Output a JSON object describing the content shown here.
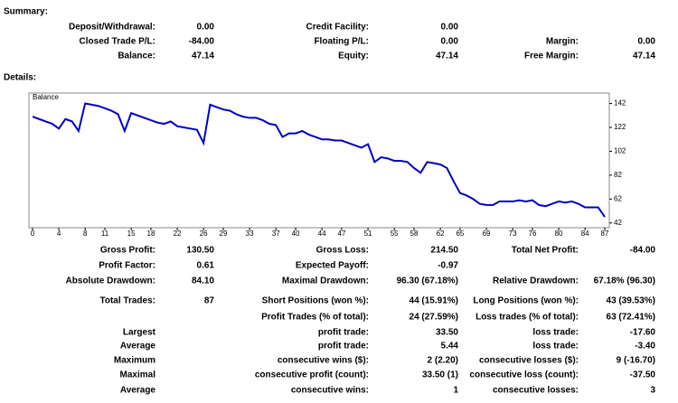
{
  "summary": {
    "title": "Summary:",
    "rows": [
      {
        "c1": {
          "label": "Deposit/Withdrawal:",
          "value": "0.00"
        },
        "c2": {
          "label": "Credit Facility:",
          "value": "0.00"
        }
      },
      {
        "c1": {
          "label": "Closed Trade P/L:",
          "value": "-84.00"
        },
        "c2": {
          "label": "Floating P/L:",
          "value": "0.00"
        },
        "c3": {
          "label": "Margin:",
          "value": "0.00"
        }
      },
      {
        "c1": {
          "label": "Balance:",
          "value": "47.14"
        },
        "c2": {
          "label": "Equity:",
          "value": "47.14"
        },
        "c3": {
          "label": "Free Margin:",
          "value": "47.14"
        }
      }
    ]
  },
  "details": {
    "title": "Details:",
    "rows": [
      {
        "c1": {
          "label": "Gross Profit:",
          "value": "130.50"
        },
        "c2": {
          "label": "Gross Loss:",
          "value": "214.50"
        },
        "c3": {
          "label": "Total Net Profit:",
          "value": "-84.00"
        }
      },
      {
        "c1": {
          "label": "Profit Factor:",
          "value": "0.61"
        },
        "c2": {
          "label": "Expected Payoff:",
          "value": "-0.97"
        }
      },
      {
        "c1": {
          "label": "Absolute Drawdown:",
          "value": "84.10"
        },
        "c2": {
          "label": "Maximal Drawdown:",
          "value": "96.30 (67.18%)"
        },
        "c3": {
          "label": "Relative Drawdown:",
          "value": "67.18% (96.30)"
        }
      },
      {
        "c1": {
          "label": "Total Trades:",
          "value": "87"
        },
        "c2": {
          "label": "Short Positions (won %):",
          "value": "44 (15.91%)"
        },
        "c3": {
          "label": "Long Positions (won %):",
          "value": "43 (39.53%)"
        }
      },
      {
        "c2": {
          "label": "Profit Trades (% of total):",
          "value": "24 (27.59%)"
        },
        "c3": {
          "label": "Loss trades (% of total):",
          "value": "63 (72.41%)"
        }
      },
      {
        "c1": {
          "label": "Largest"
        },
        "c2": {
          "label": "profit trade:",
          "value": "33.50"
        },
        "c3": {
          "label": "loss trade:",
          "value": "-17.60"
        }
      },
      {
        "c1": {
          "label": "Average"
        },
        "c2": {
          "label": "profit trade:",
          "value": "5.44"
        },
        "c3": {
          "label": "loss trade:",
          "value": "-3.40"
        }
      },
      {
        "c1": {
          "label": "Maximum"
        },
        "c2": {
          "label": "consecutive wins ($):",
          "value": "2 (2.20)"
        },
        "c3": {
          "label": "consecutive losses ($):",
          "value": "9 (-16.70)"
        }
      },
      {
        "c1": {
          "label": "Maximal"
        },
        "c2": {
          "label": "consecutive profit (count):",
          "value": "33.50 (1)"
        },
        "c3": {
          "label": "consecutive loss (count):",
          "value": "-37.50"
        }
      },
      {
        "c1": {
          "label": "Average"
        },
        "c2": {
          "label": "consecutive wins:",
          "value": "1"
        },
        "c3": {
          "label": "consecutive losses:",
          "value": "3"
        }
      }
    ]
  },
  "chart_data": {
    "type": "line",
    "legend": "Balance",
    "color": "#0000c0",
    "x": [
      0,
      1,
      2,
      3,
      4,
      5,
      6,
      7,
      8,
      9,
      10,
      11,
      12,
      13,
      14,
      15,
      16,
      17,
      18,
      19,
      20,
      21,
      22,
      23,
      24,
      25,
      26,
      27,
      28,
      29,
      30,
      31,
      32,
      33,
      34,
      35,
      36,
      37,
      38,
      39,
      40,
      41,
      42,
      43,
      44,
      45,
      46,
      47,
      48,
      49,
      50,
      51,
      52,
      53,
      54,
      55,
      56,
      57,
      58,
      59,
      60,
      61,
      62,
      63,
      64,
      65,
      66,
      67,
      68,
      69,
      70,
      71,
      72,
      73,
      74,
      75,
      76,
      77,
      78,
      79,
      80,
      81,
      82,
      83,
      84,
      85,
      86,
      87
    ],
    "values": [
      131,
      129,
      127,
      125,
      121,
      129,
      127,
      119,
      142,
      141,
      140,
      138,
      136,
      133,
      119,
      134,
      132,
      130,
      128,
      126,
      125,
      127,
      123,
      122,
      121,
      120,
      109,
      141,
      139,
      137,
      136,
      133,
      131,
      130,
      130,
      128,
      125,
      124,
      114,
      117,
      117,
      119,
      116,
      114,
      112,
      112,
      111,
      111,
      109,
      107,
      105,
      108,
      93,
      97,
      96,
      94,
      94,
      93,
      88,
      84,
      93,
      92,
      91,
      88,
      77,
      67,
      65,
      62,
      58,
      57,
      57,
      60,
      60,
      60,
      61,
      60,
      61,
      57,
      56,
      58,
      60,
      59,
      60,
      58,
      55,
      55,
      55,
      47
    ],
    "xlim": [
      0,
      87
    ],
    "xticks": [
      0,
      4,
      8,
      11,
      15,
      18,
      22,
      26,
      29,
      33,
      37,
      40,
      44,
      47,
      51,
      55,
      58,
      62,
      65,
      69,
      73,
      76,
      80,
      84,
      87
    ],
    "ylim": [
      38,
      150
    ],
    "yticks": [
      142,
      122,
      102,
      82,
      62,
      42
    ]
  }
}
